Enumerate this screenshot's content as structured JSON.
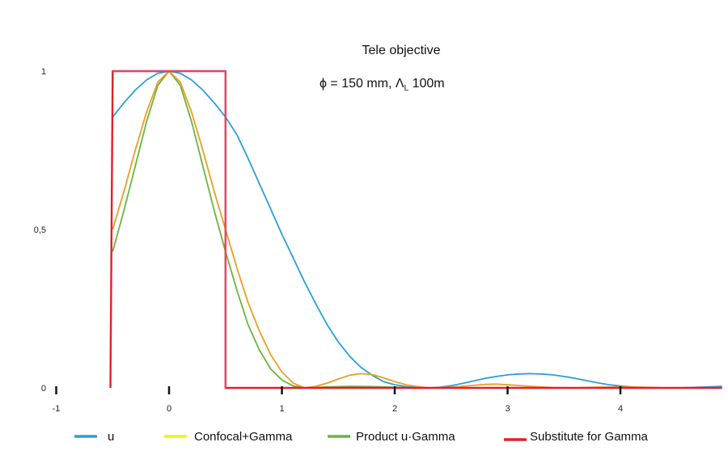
{
  "chart_data": {
    "type": "line",
    "title": "Tele objective",
    "subtitle": "ϕ = 150 mm, Λ",
    "subtitle_sub": "L",
    "subtitle_tail": " 100m",
    "xlabel": "",
    "ylabel": "",
    "xlim": [
      -1,
      4.9
    ],
    "ylim": [
      0,
      1
    ],
    "x_ticks": [
      {
        "value": -1,
        "label": "-1"
      },
      {
        "value": 0,
        "label": "0"
      },
      {
        "value": 1,
        "label": "1"
      },
      {
        "value": 2,
        "label": "2"
      },
      {
        "value": 3,
        "label": "3"
      },
      {
        "value": 4,
        "label": "4"
      }
    ],
    "y_ticks": [
      {
        "value": 0,
        "label": "0"
      },
      {
        "value": 0.5,
        "label": "0,5"
      },
      {
        "value": 1,
        "label": "1"
      }
    ],
    "grid": false,
    "legend_position": "bottom",
    "series": [
      {
        "name": "u",
        "color": "#2a9fd8",
        "points": [
          [
            -0.5,
            0.855
          ],
          [
            -0.4,
            0.9
          ],
          [
            -0.3,
            0.94
          ],
          [
            -0.2,
            0.972
          ],
          [
            -0.1,
            0.993
          ],
          [
            0,
            1.0
          ],
          [
            0.1,
            0.993
          ],
          [
            0.2,
            0.972
          ],
          [
            0.3,
            0.94
          ],
          [
            0.4,
            0.9
          ],
          [
            0.5,
            0.855
          ],
          [
            0.6,
            0.8
          ],
          [
            0.7,
            0.725
          ],
          [
            0.8,
            0.645
          ],
          [
            0.9,
            0.565
          ],
          [
            1.0,
            0.485
          ],
          [
            1.1,
            0.41
          ],
          [
            1.2,
            0.335
          ],
          [
            1.3,
            0.265
          ],
          [
            1.4,
            0.2
          ],
          [
            1.5,
            0.145
          ],
          [
            1.6,
            0.1
          ],
          [
            1.7,
            0.065
          ],
          [
            1.8,
            0.04
          ],
          [
            1.9,
            0.02
          ],
          [
            2.0,
            0.01
          ],
          [
            2.1,
            0.004
          ],
          [
            2.2,
            0.001
          ],
          [
            2.3,
            0.0
          ],
          [
            2.4,
            0.002
          ],
          [
            2.5,
            0.007
          ],
          [
            2.6,
            0.014
          ],
          [
            2.7,
            0.022
          ],
          [
            2.8,
            0.03
          ],
          [
            2.9,
            0.036
          ],
          [
            3.0,
            0.041
          ],
          [
            3.1,
            0.044
          ],
          [
            3.2,
            0.045
          ],
          [
            3.3,
            0.044
          ],
          [
            3.4,
            0.041
          ],
          [
            3.5,
            0.036
          ],
          [
            3.6,
            0.03
          ],
          [
            3.7,
            0.023
          ],
          [
            3.8,
            0.016
          ],
          [
            3.9,
            0.01
          ],
          [
            4.0,
            0.006
          ],
          [
            4.1,
            0.003
          ],
          [
            4.2,
            0.001
          ],
          [
            4.3,
            0.0
          ],
          [
            4.5,
            0.0
          ],
          [
            4.7,
            0.002
          ],
          [
            4.9,
            0.005
          ]
        ]
      },
      {
        "name": "Confocal+Gamma",
        "color": "#e8a020",
        "legend_color": "#f6ee10",
        "points": [
          [
            -0.5,
            0.5
          ],
          [
            -0.4,
            0.62
          ],
          [
            -0.3,
            0.75
          ],
          [
            -0.2,
            0.87
          ],
          [
            -0.1,
            0.965
          ],
          [
            0,
            1.0
          ],
          [
            0.1,
            0.965
          ],
          [
            0.2,
            0.87
          ],
          [
            0.3,
            0.75
          ],
          [
            0.4,
            0.62
          ],
          [
            0.5,
            0.5
          ],
          [
            0.6,
            0.38
          ],
          [
            0.7,
            0.27
          ],
          [
            0.8,
            0.18
          ],
          [
            0.9,
            0.105
          ],
          [
            1.0,
            0.05
          ],
          [
            1.1,
            0.015
          ],
          [
            1.2,
            0.0
          ],
          [
            1.3,
            0.005
          ],
          [
            1.4,
            0.015
          ],
          [
            1.5,
            0.028
          ],
          [
            1.6,
            0.04
          ],
          [
            1.7,
            0.045
          ],
          [
            1.8,
            0.042
          ],
          [
            1.9,
            0.032
          ],
          [
            2.0,
            0.02
          ],
          [
            2.1,
            0.01
          ],
          [
            2.2,
            0.004
          ],
          [
            2.3,
            0.0
          ],
          [
            2.5,
            0.002
          ],
          [
            2.7,
            0.008
          ],
          [
            2.8,
            0.011
          ],
          [
            2.9,
            0.012
          ],
          [
            3.0,
            0.01
          ],
          [
            3.2,
            0.005
          ],
          [
            3.4,
            0.001
          ],
          [
            3.6,
            0.0
          ],
          [
            3.8,
            0.002
          ],
          [
            4.0,
            0.003
          ],
          [
            4.2,
            0.002
          ],
          [
            4.4,
            0.0
          ],
          [
            4.9,
            0.0
          ]
        ]
      },
      {
        "name": "Product u·Gamma",
        "color": "#6ab540",
        "points": [
          [
            -0.5,
            0.43
          ],
          [
            -0.4,
            0.56
          ],
          [
            -0.3,
            0.7
          ],
          [
            -0.2,
            0.84
          ],
          [
            -0.1,
            0.955
          ],
          [
            0,
            1.0
          ],
          [
            0.1,
            0.955
          ],
          [
            0.2,
            0.84
          ],
          [
            0.3,
            0.7
          ],
          [
            0.4,
            0.56
          ],
          [
            0.5,
            0.43
          ],
          [
            0.6,
            0.31
          ],
          [
            0.7,
            0.2
          ],
          [
            0.8,
            0.12
          ],
          [
            0.9,
            0.06
          ],
          [
            1.0,
            0.025
          ],
          [
            1.1,
            0.006
          ],
          [
            1.2,
            0.0
          ],
          [
            1.4,
            0.003
          ],
          [
            1.6,
            0.005
          ],
          [
            1.8,
            0.004
          ],
          [
            2.0,
            0.002
          ],
          [
            2.2,
            0.0
          ],
          [
            4.9,
            0.0
          ]
        ]
      },
      {
        "name": "Substitute for Gamma",
        "color": "#e0202a",
        "legend_color": "#e0202a",
        "points": [
          [
            -0.52,
            0.0
          ],
          [
            -0.5,
            1.0
          ],
          [
            0.5,
            1.0
          ],
          [
            0.5,
            0.0
          ],
          [
            4.9,
            0.0
          ]
        ]
      }
    ]
  },
  "legend": {
    "items": [
      {
        "label": "u",
        "color": "#2a9fd8"
      },
      {
        "label": "Confocal+Gamma",
        "color": "#f6ee10"
      },
      {
        "label": "Product u·Gamma",
        "color": "#6ab540"
      },
      {
        "label": "Substitute for Gamma",
        "color": "#e0202a"
      }
    ]
  }
}
